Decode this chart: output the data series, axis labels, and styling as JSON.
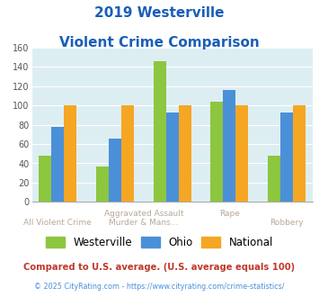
{
  "title_line1": "2019 Westerville",
  "title_line2": "Violent Crime Comparison",
  "groups": [
    {
      "westerville": 48,
      "ohio": 78,
      "national": 100
    },
    {
      "westerville": 37,
      "ohio": 66,
      "national": 100
    },
    {
      "westerville": 146,
      "ohio": 93,
      "national": 100
    },
    {
      "westerville": 104,
      "ohio": 116,
      "national": 100
    },
    {
      "westerville": 48,
      "ohio": 93,
      "national": 100
    }
  ],
  "xlabel_top": [
    "",
    "Aggravated Assault",
    "",
    "Rape",
    ""
  ],
  "xlabel_bot": [
    "All Violent Crime",
    "",
    "Murder & Mans...",
    "",
    "Robbery"
  ],
  "color_westerville": "#8dc63f",
  "color_ohio": "#4a90d9",
  "color_national": "#f5a623",
  "title_color": "#1a5eb8",
  "plot_bg": "#ddeef3",
  "ylim": [
    0,
    160
  ],
  "yticks": [
    0,
    20,
    40,
    60,
    80,
    100,
    120,
    140,
    160
  ],
  "footnote1": "Compared to U.S. average. (U.S. average equals 100)",
  "footnote2": "© 2025 CityRating.com - https://www.cityrating.com/crime-statistics/",
  "footnote1_color": "#c0392b",
  "footnote2_color": "#4a90d9",
  "label_color": "#b8a898"
}
